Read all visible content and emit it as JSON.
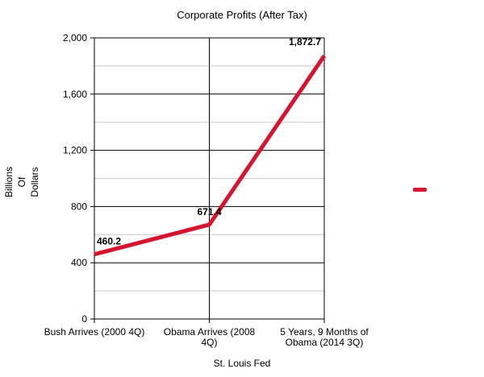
{
  "chart_data": {
    "type": "line",
    "title": "Corporate Profits (After Tax)",
    "xlabel": "St. Louis Fed",
    "ylabel_lines": [
      "Billions",
      "Of",
      "Dollars"
    ],
    "categories": [
      [
        "Bush Arrives (2000 4Q)"
      ],
      [
        "Obama Arrives (2008",
        "4Q)"
      ],
      [
        "5 Years, 9 Months of",
        "Obama (2014 3Q)"
      ]
    ],
    "series": [
      {
        "name": "",
        "values": [
          460.2,
          671.4,
          1872.7
        ],
        "color": "#d7142f"
      }
    ],
    "data_labels": [
      "460.2",
      "671.4",
      "1,872.7"
    ],
    "yticks": [
      0,
      400,
      800,
      1200,
      1600,
      2000
    ],
    "ytick_labels": [
      "0",
      "400",
      "800",
      "1,200",
      "1,600",
      "2,000"
    ],
    "ylim": [
      0,
      2000
    ],
    "minor_gridlines": true,
    "legend": "right"
  }
}
